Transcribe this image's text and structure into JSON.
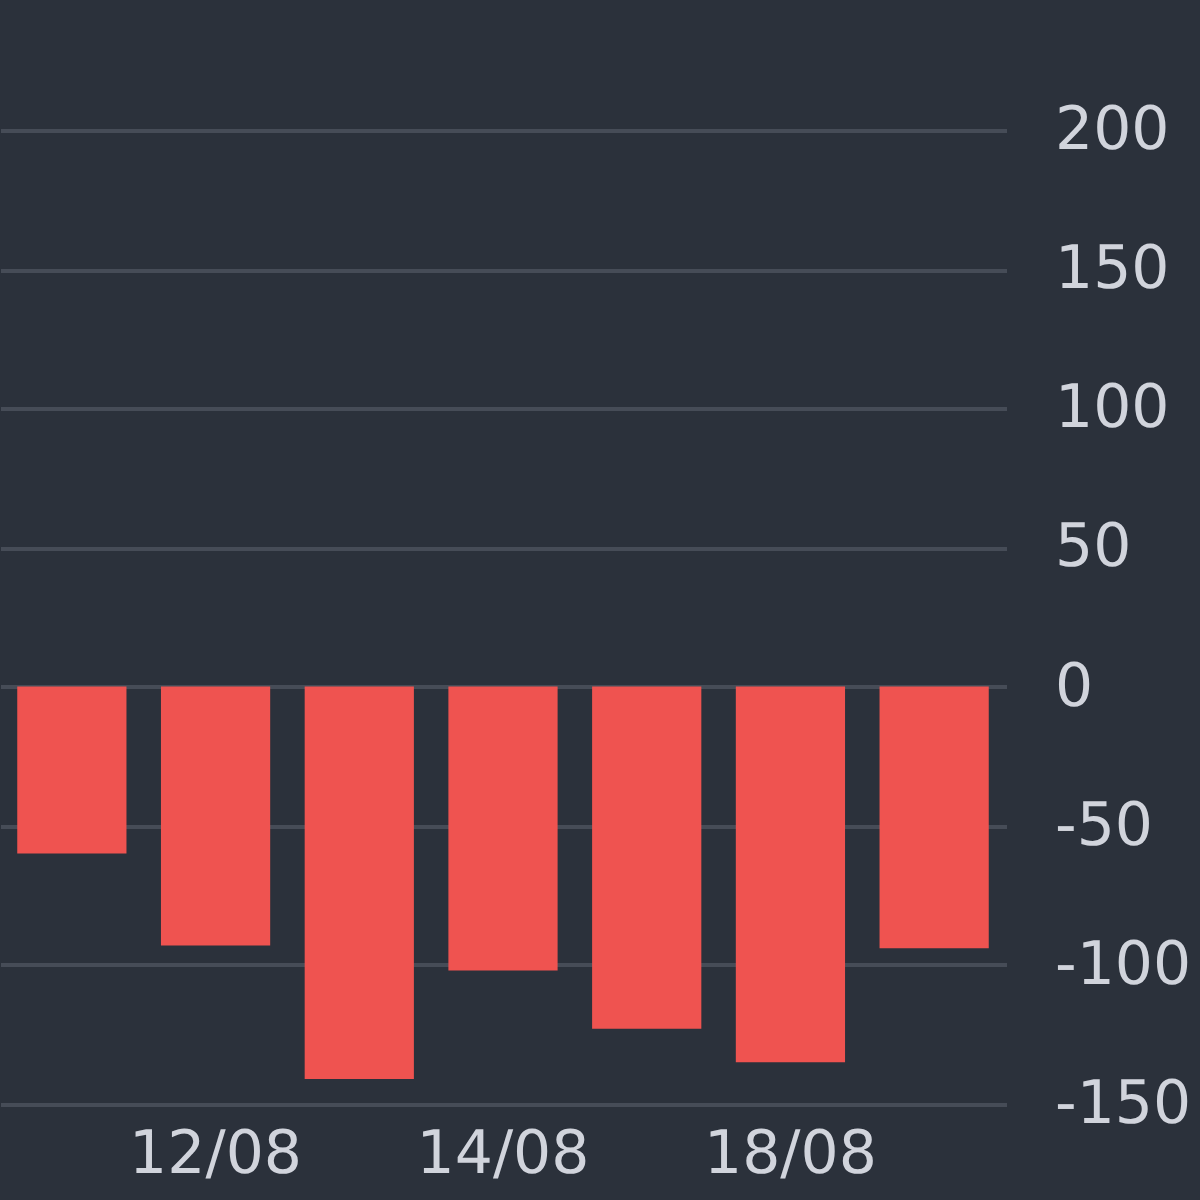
{
  "chart_data": {
    "type": "bar",
    "categories": [
      null,
      "12/08",
      null,
      "14/08",
      null,
      "18/08",
      null
    ],
    "values": [
      -60,
      -93,
      -141,
      -102,
      -123,
      -135,
      -94
    ],
    "color": "#ef5350",
    "ylim": [
      -150,
      200
    ],
    "yticks": [
      -150,
      -100,
      -50,
      0,
      50,
      100,
      150,
      200
    ],
    "grid": "y"
  }
}
